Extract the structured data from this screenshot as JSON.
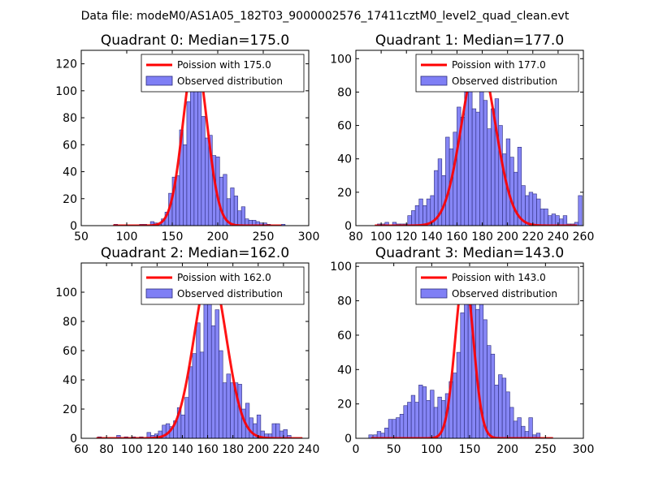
{
  "figure_title": "Data file: modeM0/AS1A05_182T03_9000002576_17411cztM0_level2_quad_clean.evt",
  "colors": {
    "poisson": "#ff0000",
    "hist_fill": "#7f7ff5",
    "hist_edge": "#2b2b7a",
    "axes": "#000000"
  },
  "chart_data": [
    {
      "type": "bar",
      "title": "Quadrant 0: Median=175.0",
      "xlim": [
        50,
        300
      ],
      "ylim": [
        0,
        130
      ],
      "xticks": [
        50,
        100,
        150,
        200,
        250,
        300
      ],
      "yticks": [
        0,
        20,
        40,
        60,
        80,
        100,
        120
      ],
      "xtick_labels": [
        "50",
        "100",
        "150",
        "200",
        "250",
        "300"
      ],
      "ytick_labels": [
        "0",
        "20",
        "40",
        "60",
        "80",
        "100",
        "120"
      ],
      "legend": {
        "placement": "top-right",
        "line_label": "Poission with 175.0",
        "bar_label": "Observed distribution"
      },
      "poisson_mean": 175.0,
      "poisson_peak": 126,
      "poisson_sigma": 13.2,
      "poisson_range": [
        85,
        270
      ],
      "bin_width": 4,
      "bins": [
        [
          86,
          1
        ],
        [
          114,
          1
        ],
        [
          118,
          1
        ],
        [
          126,
          3
        ],
        [
          130,
          2
        ],
        [
          134,
          1
        ],
        [
          138,
          5
        ],
        [
          142,
          10
        ],
        [
          146,
          24
        ],
        [
          150,
          36
        ],
        [
          154,
          37
        ],
        [
          158,
          71
        ],
        [
          162,
          60
        ],
        [
          166,
          92
        ],
        [
          170,
          120
        ],
        [
          174,
          103
        ],
        [
          178,
          106
        ],
        [
          182,
          81
        ],
        [
          186,
          65
        ],
        [
          190,
          67
        ],
        [
          194,
          52
        ],
        [
          198,
          51
        ],
        [
          202,
          36
        ],
        [
          206,
          38
        ],
        [
          210,
          20
        ],
        [
          214,
          28
        ],
        [
          218,
          22
        ],
        [
          222,
          11
        ],
        [
          226,
          14
        ],
        [
          230,
          5
        ],
        [
          234,
          4
        ],
        [
          238,
          4
        ],
        [
          242,
          3
        ],
        [
          246,
          2
        ],
        [
          250,
          2
        ],
        [
          254,
          1
        ],
        [
          270,
          1
        ]
      ]
    },
    {
      "type": "bar",
      "title": "Quadrant 1: Median=177.0",
      "xlim": [
        80,
        260
      ],
      "ylim": [
        0,
        105
      ],
      "xticks": [
        80,
        100,
        120,
        140,
        160,
        180,
        200,
        220,
        240,
        260
      ],
      "yticks": [
        0,
        20,
        40,
        60,
        80,
        100
      ],
      "xtick_labels": [
        "80",
        "100",
        "120",
        "140",
        "160",
        "180",
        "200",
        "220",
        "240",
        "260"
      ],
      "ytick_labels": [
        "0",
        "20",
        "40",
        "60",
        "80",
        "100"
      ],
      "legend": {
        "placement": "top-right",
        "line_label": "Poission with 177.0",
        "bar_label": "Observed distribution"
      },
      "poisson_mean": 177.0,
      "poisson_peak": 101,
      "poisson_sigma": 13.3,
      "poisson_range": [
        95,
        255
      ],
      "bin_width": 3,
      "bins": [
        [
          97,
          1
        ],
        [
          100,
          1
        ],
        [
          103,
          2
        ],
        [
          109,
          2
        ],
        [
          112,
          1
        ],
        [
          115,
          1
        ],
        [
          118,
          1
        ],
        [
          121,
          6
        ],
        [
          124,
          9
        ],
        [
          127,
          12
        ],
        [
          130,
          16
        ],
        [
          133,
          12
        ],
        [
          136,
          16
        ],
        [
          139,
          18
        ],
        [
          142,
          33
        ],
        [
          145,
          40
        ],
        [
          148,
          30
        ],
        [
          151,
          53
        ],
        [
          154,
          46
        ],
        [
          157,
          56
        ],
        [
          160,
          71
        ],
        [
          163,
          65
        ],
        [
          166,
          80
        ],
        [
          169,
          93
        ],
        [
          172,
          70
        ],
        [
          175,
          68
        ],
        [
          178,
          82
        ],
        [
          181,
          75
        ],
        [
          184,
          58
        ],
        [
          187,
          70
        ],
        [
          190,
          76
        ],
        [
          193,
          60
        ],
        [
          196,
          43
        ],
        [
          199,
          52
        ],
        [
          202,
          41
        ],
        [
          205,
          32
        ],
        [
          208,
          47
        ],
        [
          211,
          24
        ],
        [
          214,
          18
        ],
        [
          217,
          20
        ],
        [
          220,
          19
        ],
        [
          223,
          16
        ],
        [
          226,
          10
        ],
        [
          229,
          10
        ],
        [
          232,
          6
        ],
        [
          235,
          7
        ],
        [
          238,
          6
        ],
        [
          241,
          4
        ],
        [
          244,
          6
        ],
        [
          247,
          1
        ],
        [
          250,
          1
        ],
        [
          253,
          2
        ],
        [
          256,
          18
        ]
      ]
    },
    {
      "type": "bar",
      "title": "Quadrant 2: Median=162.0",
      "xlim": [
        60,
        240
      ],
      "ylim": [
        0,
        120
      ],
      "xticks": [
        60,
        80,
        100,
        120,
        140,
        160,
        180,
        200,
        220,
        240
      ],
      "yticks": [
        0,
        20,
        40,
        60,
        80,
        100
      ],
      "xtick_labels": [
        "60",
        "80",
        "100",
        "120",
        "140",
        "160",
        "180",
        "200",
        "220",
        "240"
      ],
      "ytick_labels": [
        "0",
        "20",
        "40",
        "60",
        "80",
        "100"
      ],
      "legend": {
        "placement": "top-right",
        "line_label": "Poission with 162.0",
        "bar_label": "Observed distribution"
      },
      "poisson_mean": 162.0,
      "poisson_peak": 115,
      "poisson_sigma": 12.7,
      "poisson_range": [
        72,
        235
      ],
      "bin_width": 3,
      "bins": [
        [
          73,
          1
        ],
        [
          88,
          2
        ],
        [
          94,
          1
        ],
        [
          100,
          1
        ],
        [
          106,
          1
        ],
        [
          112,
          4
        ],
        [
          115,
          2
        ],
        [
          118,
          3
        ],
        [
          121,
          5
        ],
        [
          124,
          9
        ],
        [
          127,
          10
        ],
        [
          130,
          8
        ],
        [
          133,
          12
        ],
        [
          136,
          21
        ],
        [
          139,
          16
        ],
        [
          142,
          28
        ],
        [
          145,
          49
        ],
        [
          148,
          58
        ],
        [
          151,
          79
        ],
        [
          154,
          59
        ],
        [
          157,
          96
        ],
        [
          160,
          112
        ],
        [
          163,
          77
        ],
        [
          166,
          88
        ],
        [
          169,
          60
        ],
        [
          172,
          38
        ],
        [
          175,
          44
        ],
        [
          178,
          38
        ],
        [
          181,
          38
        ],
        [
          184,
          37
        ],
        [
          187,
          20
        ],
        [
          190,
          24
        ],
        [
          193,
          14
        ],
        [
          196,
          10
        ],
        [
          199,
          16
        ],
        [
          202,
          5
        ],
        [
          205,
          3
        ],
        [
          208,
          3
        ],
        [
          211,
          10
        ],
        [
          214,
          10
        ],
        [
          217,
          5
        ],
        [
          220,
          6
        ],
        [
          223,
          2
        ]
      ]
    },
    {
      "type": "bar",
      "title": "Quadrant 3: Median=143.0",
      "xlim": [
        0,
        300
      ],
      "ylim": [
        0,
        102
      ],
      "xticks": [
        0,
        50,
        100,
        150,
        200,
        250,
        300
      ],
      "yticks": [
        0,
        20,
        40,
        60,
        80,
        100
      ],
      "xtick_labels": [
        "0",
        "50",
        "100",
        "150",
        "200",
        "250",
        "300"
      ],
      "ytick_labels": [
        "0",
        "20",
        "40",
        "60",
        "80",
        "100"
      ],
      "legend": {
        "placement": "top-right",
        "line_label": "Poission with 143.0",
        "bar_label": "Observed distribution"
      },
      "poisson_mean": 143.0,
      "poisson_peak": 96,
      "poisson_sigma": 11.9,
      "poisson_range": [
        20,
        260
      ],
      "bin_width": 5,
      "bins": [
        [
          17,
          2
        ],
        [
          23,
          2
        ],
        [
          28,
          4
        ],
        [
          33,
          3
        ],
        [
          38,
          6
        ],
        [
          43,
          11
        ],
        [
          48,
          11
        ],
        [
          53,
          12
        ],
        [
          58,
          14
        ],
        [
          63,
          19
        ],
        [
          68,
          21
        ],
        [
          73,
          25
        ],
        [
          78,
          21
        ],
        [
          83,
          31
        ],
        [
          88,
          30
        ],
        [
          93,
          22
        ],
        [
          98,
          28
        ],
        [
          103,
          18
        ],
        [
          108,
          24
        ],
        [
          113,
          22
        ],
        [
          118,
          26
        ],
        [
          123,
          33
        ],
        [
          128,
          38
        ],
        [
          133,
          50
        ],
        [
          138,
          73
        ],
        [
          143,
          90
        ],
        [
          148,
          86
        ],
        [
          153,
          98
        ],
        [
          158,
          75
        ],
        [
          163,
          80
        ],
        [
          168,
          69
        ],
        [
          173,
          54
        ],
        [
          178,
          49
        ],
        [
          183,
          31
        ],
        [
          188,
          37
        ],
        [
          193,
          35
        ],
        [
          198,
          27
        ],
        [
          203,
          18
        ],
        [
          208,
          10
        ],
        [
          213,
          12
        ],
        [
          218,
          7
        ],
        [
          223,
          4
        ],
        [
          228,
          12
        ],
        [
          233,
          2
        ],
        [
          238,
          3
        ]
      ]
    }
  ]
}
